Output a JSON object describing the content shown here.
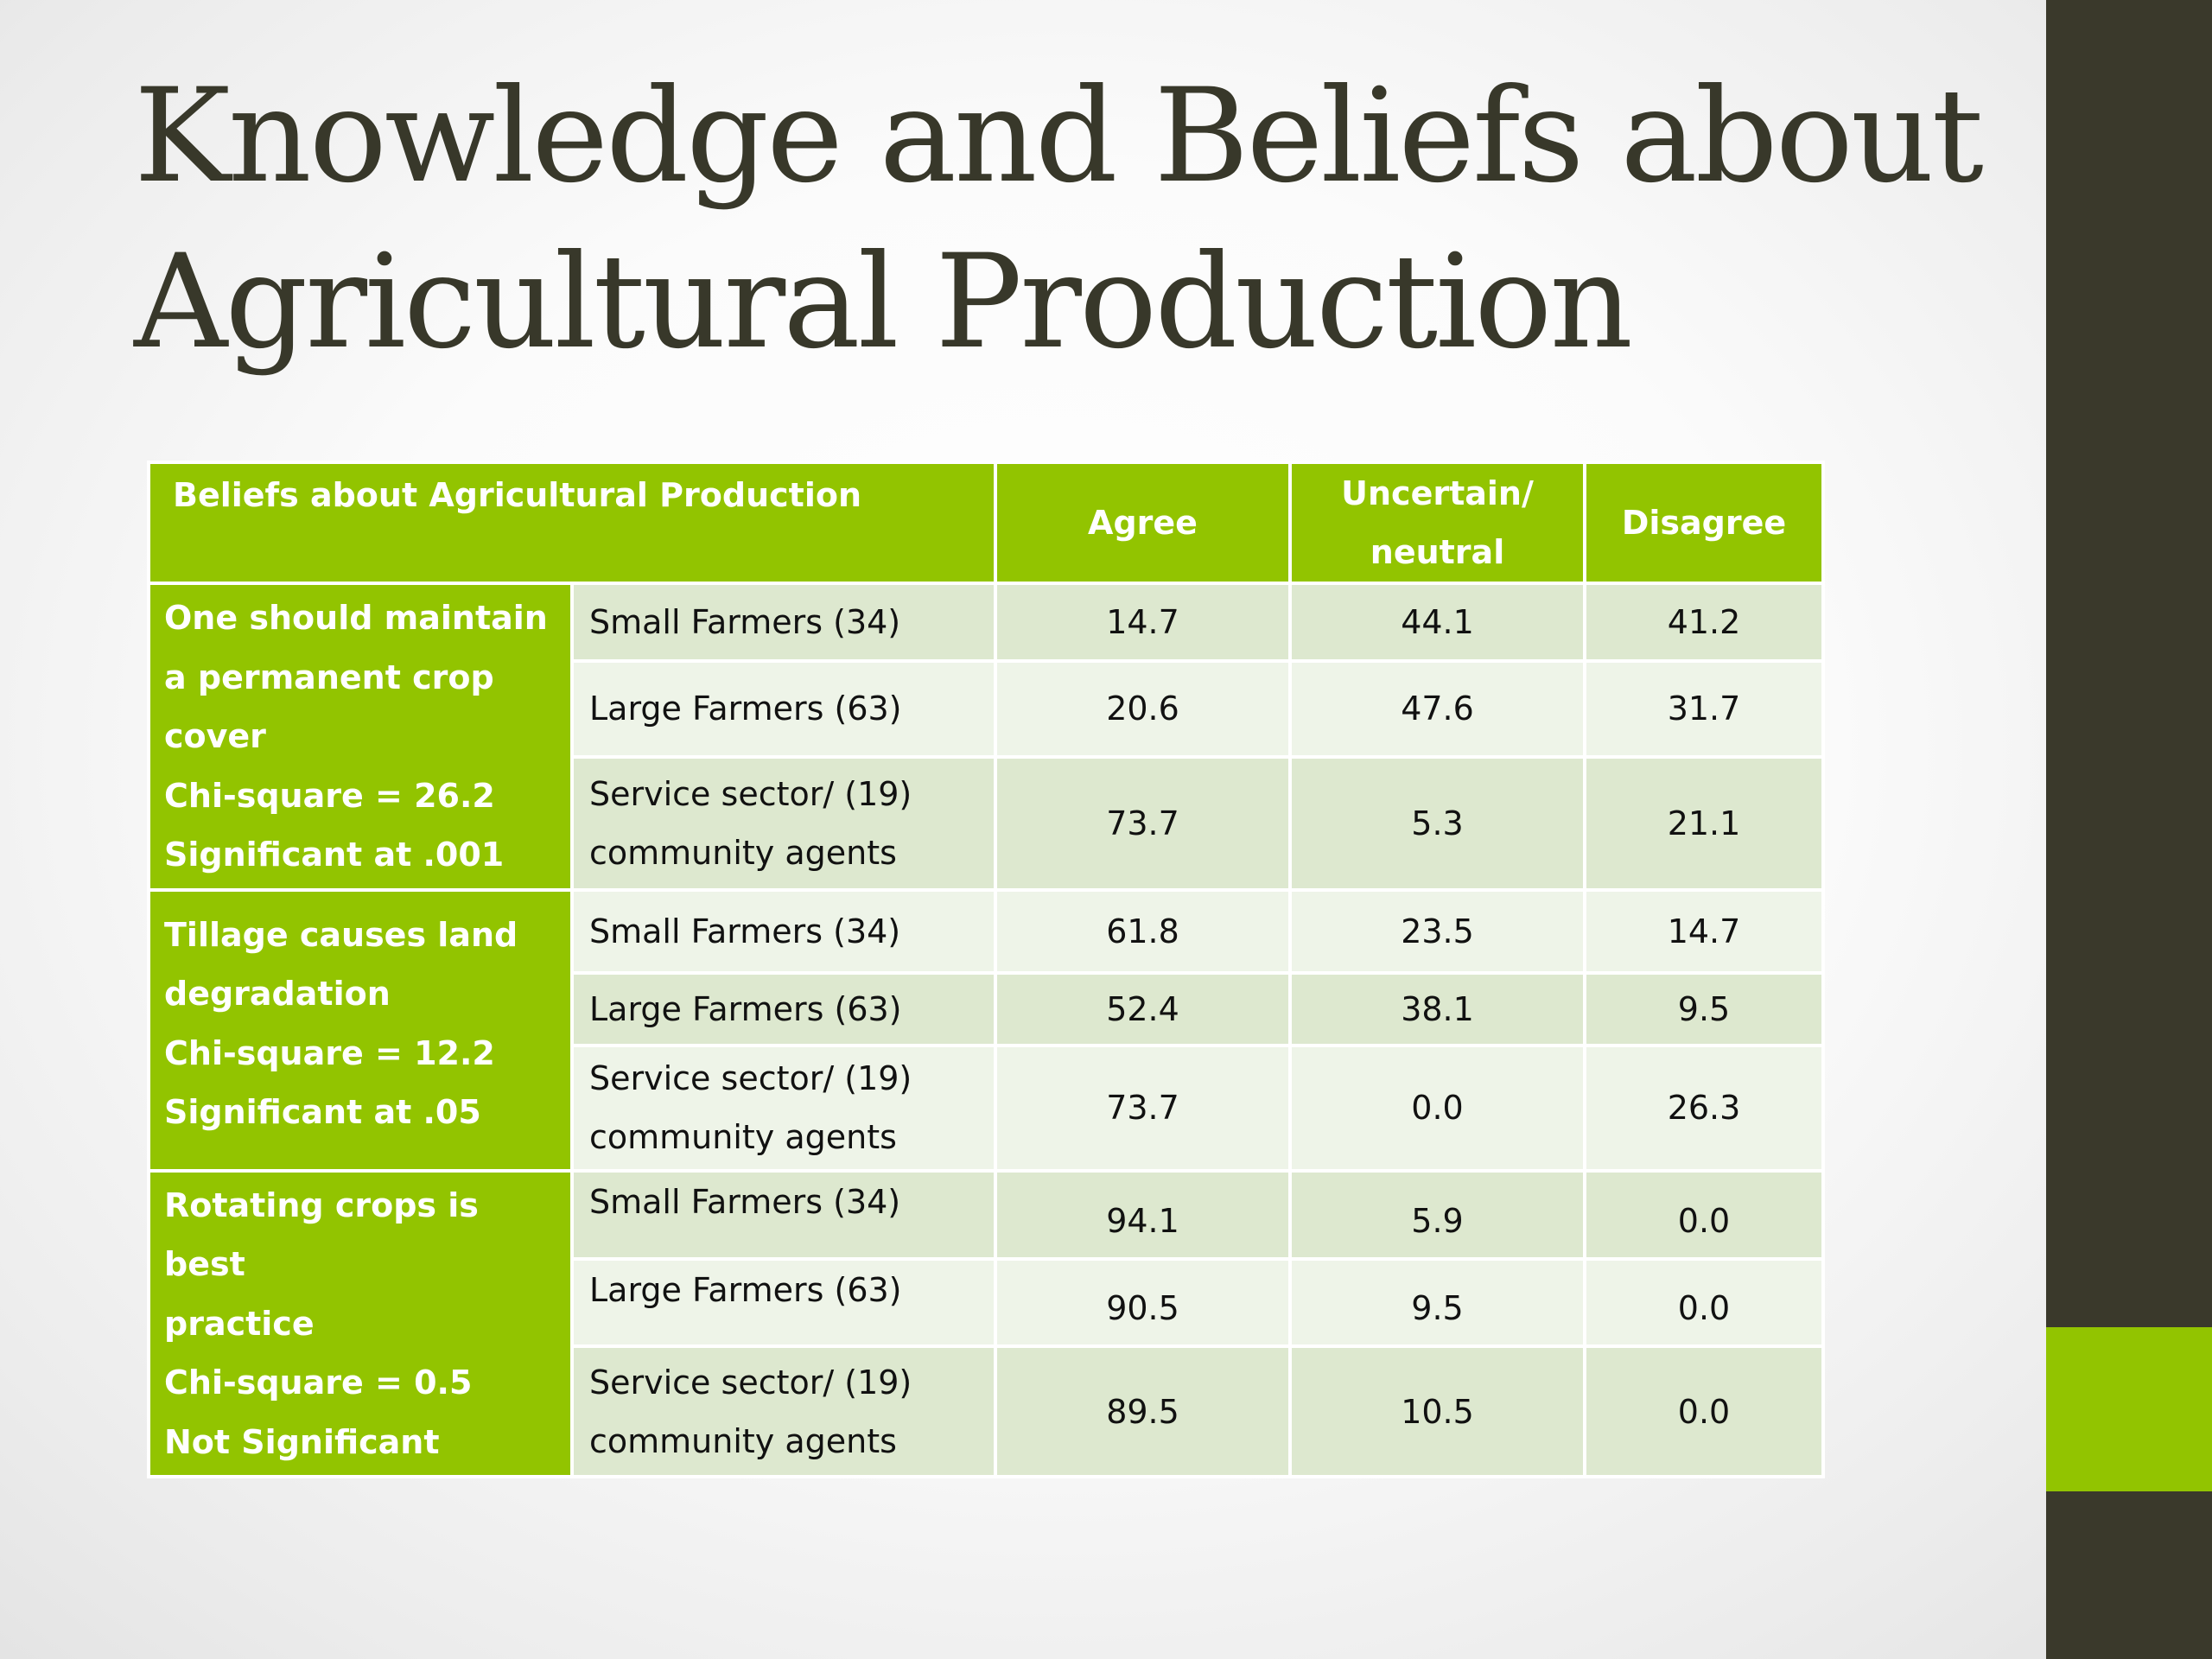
{
  "title": {
    "line1": "Knowledge and Beliefs about",
    "line2": "Agricultural Production"
  },
  "table": {
    "headers": {
      "beliefs": "Beliefs about Agricultural Production",
      "agree": "Agree",
      "uncertain_line1": "Uncertain/",
      "uncertain_line2": "neutral",
      "disagree": "Disagree"
    },
    "groups": [
      {
        "lines": [
          "One should maintain",
          "a permanent crop",
          "cover",
          "Chi-square = 26.2",
          "Significant at .001"
        ],
        "rows": [
          {
            "label": "Small Farmers (34)",
            "agree": "14.7",
            "uncertain": "44.1",
            "disagree": "41.2"
          },
          {
            "label": "Large Farmers (63)",
            "agree": "20.6",
            "uncertain": "47.6",
            "disagree": "31.7"
          },
          {
            "label_line1": "Service sector/ (19)",
            "label_line2": "community agents",
            "agree": "73.7",
            "uncertain": "5.3",
            "disagree": "21.1"
          }
        ]
      },
      {
        "lines": [
          "Tillage causes land",
          "degradation",
          "Chi-square = 12.2",
          "Significant at .05"
        ],
        "rows": [
          {
            "label": "Small Farmers (34)",
            "agree": "61.8",
            "uncertain": "23.5",
            "disagree": "14.7"
          },
          {
            "label": "Large Farmers (63)",
            "agree": "52.4",
            "uncertain": "38.1",
            "disagree": "9.5"
          },
          {
            "label_line1": "Service sector/ (19)",
            "label_line2": "community agents",
            "agree": "73.7",
            "uncertain": "0.0",
            "disagree": "26.3"
          }
        ]
      },
      {
        "lines": [
          "Rotating crops is best",
          "practice",
          "Chi-square = 0.5",
          "Not Significant"
        ],
        "rows": [
          {
            "label": "Small Farmers (34)",
            "agree": "94.1",
            "uncertain": "5.9",
            "disagree": "0.0"
          },
          {
            "label": "Large Farmers (63)",
            "agree": "90.5",
            "uncertain": "9.5",
            "disagree": "0.0"
          },
          {
            "label_line1": "Service sector/ (19)",
            "label_line2": "community agents",
            "agree": "89.5",
            "uncertain": "10.5",
            "disagree": "0.0"
          }
        ]
      }
    ]
  },
  "colors": {
    "accent_green": "#92c400",
    "dark_olive": "#3a392b",
    "row_dark": "#dde8cf",
    "row_light": "#eef4e8"
  }
}
